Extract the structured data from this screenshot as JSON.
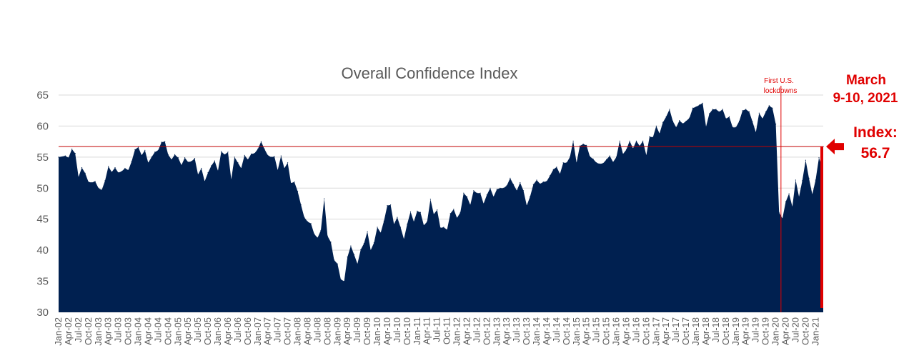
{
  "chart_data": {
    "type": "area",
    "title": "Overall Confidence Index",
    "xlabel": "",
    "ylabel": "",
    "ylim": [
      30,
      65
    ],
    "yticks": [
      30,
      35,
      40,
      45,
      50,
      55,
      60,
      65
    ],
    "grid": "horizontal",
    "x_tick_labels": [
      "Jan-02",
      "Apr-02",
      "Jul-02",
      "Oct-02",
      "Jan-03",
      "Apr-03",
      "Jul-03",
      "Oct-03",
      "Jan-04",
      "Apr-04",
      "Jul-04",
      "Oct-04",
      "Jan-05",
      "Apr-05",
      "Jul-05",
      "Oct-05",
      "Jan-06",
      "Apr-06",
      "Jul-06",
      "Oct-06",
      "Jan-07",
      "Apr-07",
      "Jul-07",
      "Oct-07",
      "Jan-08",
      "Apr-08",
      "Jul-08",
      "Oct-08",
      "Jan-09",
      "Apr-09",
      "Jul-09",
      "Oct-09",
      "Jan-10",
      "Apr-10",
      "Jul-10",
      "Oct-10",
      "Jan-11",
      "Apr-11",
      "Jul-11",
      "Oct-11",
      "Jan-12",
      "Apr-12",
      "Jul-12",
      "Oct-12",
      "Jan-13",
      "Apr-13",
      "Jul-13",
      "Oct-13",
      "Jan-14",
      "Apr-14",
      "Jul-14",
      "Oct-14",
      "Jan-15",
      "Apr-15",
      "Jul-15",
      "Oct-15",
      "Jan-16",
      "Apr-16",
      "Jul-16",
      "Oct-16",
      "Jan-17",
      "Apr-17",
      "Jul-17",
      "Oct-17",
      "Jan-18",
      "Apr-18",
      "Jul-18",
      "Oct-18",
      "Jan-19",
      "Apr-19",
      "Jul-19",
      "Oct-19",
      "Jan-20",
      "Apr-20",
      "Jul-20",
      "Oct-20",
      "Jan-21"
    ],
    "series": [
      {
        "name": "",
        "color": "#002050",
        "points": [
          [
            "Jan-02",
            55.0
          ],
          [
            "Mar-02",
            55.2
          ],
          [
            "Apr-02",
            54.9
          ],
          [
            "May-02",
            56.3
          ],
          [
            "Jun-02",
            55.6
          ],
          [
            "Jul-02",
            51.8
          ],
          [
            "Aug-02",
            53.3
          ],
          [
            "Sep-02",
            52.4
          ],
          [
            "Oct-02",
            51.0
          ],
          [
            "Nov-02",
            50.9
          ],
          [
            "Dec-02",
            51.1
          ],
          [
            "Jan-03",
            50.0
          ],
          [
            "Feb-03",
            49.7
          ],
          [
            "Mar-03",
            51.2
          ],
          [
            "Apr-03",
            53.5
          ],
          [
            "May-03",
            52.6
          ],
          [
            "Jun-03",
            53.3
          ],
          [
            "Jul-03",
            52.5
          ],
          [
            "Aug-03",
            52.7
          ],
          [
            "Sep-03",
            53.2
          ],
          [
            "Oct-03",
            52.9
          ],
          [
            "Nov-03",
            54.3
          ],
          [
            "Dec-03",
            56.2
          ],
          [
            "Jan-04",
            56.6
          ],
          [
            "Feb-04",
            55.3
          ],
          [
            "Mar-04",
            56.1
          ],
          [
            "Apr-04",
            54.1
          ],
          [
            "May-04",
            55.0
          ],
          [
            "Jun-04",
            55.8
          ],
          [
            "Jul-04",
            56.1
          ],
          [
            "Aug-04",
            57.4
          ],
          [
            "Sep-04",
            57.5
          ],
          [
            "Oct-04",
            55.4
          ],
          [
            "Nov-04",
            54.6
          ],
          [
            "Dec-04",
            55.4
          ],
          [
            "Jan-05",
            54.9
          ],
          [
            "Feb-05",
            53.7
          ],
          [
            "Mar-05",
            54.9
          ],
          [
            "Apr-05",
            54.2
          ],
          [
            "May-05",
            54.3
          ],
          [
            "Jun-05",
            54.8
          ],
          [
            "Jul-05",
            52.2
          ],
          [
            "Aug-05",
            53.2
          ],
          [
            "Sep-05",
            51.1
          ],
          [
            "Oct-05",
            52.5
          ],
          [
            "Nov-05",
            53.6
          ],
          [
            "Dec-05",
            54.4
          ],
          [
            "Jan-06",
            52.8
          ],
          [
            "Feb-06",
            55.9
          ],
          [
            "Mar-06",
            55.4
          ],
          [
            "Apr-06",
            55.8
          ],
          [
            "May-06",
            51.4
          ],
          [
            "Jun-06",
            55.0
          ],
          [
            "Jul-06",
            54.1
          ],
          [
            "Aug-06",
            53.2
          ],
          [
            "Sep-06",
            55.3
          ],
          [
            "Oct-06",
            54.6
          ],
          [
            "Nov-06",
            55.5
          ],
          [
            "Dec-06",
            55.6
          ],
          [
            "Jan-07",
            56.3
          ],
          [
            "Feb-07",
            57.5
          ],
          [
            "Mar-07",
            56.3
          ],
          [
            "Apr-07",
            55.3
          ],
          [
            "May-07",
            55.0
          ],
          [
            "Jun-07",
            55.1
          ],
          [
            "Jul-07",
            52.9
          ],
          [
            "Aug-07",
            55.2
          ],
          [
            "Sep-07",
            53.2
          ],
          [
            "Oct-07",
            54.1
          ],
          [
            "Nov-07",
            50.8
          ],
          [
            "Dec-07",
            51.0
          ],
          [
            "Jan-08",
            49.5
          ],
          [
            "Feb-08",
            47.3
          ],
          [
            "Mar-08",
            45.3
          ],
          [
            "Apr-08",
            44.6
          ],
          [
            "May-08",
            44.3
          ],
          [
            "Jun-08",
            42.6
          ],
          [
            "Jul-08",
            42.0
          ],
          [
            "Aug-08",
            43.2
          ],
          [
            "Sep-08",
            48.3
          ],
          [
            "Oct-08",
            42.3
          ],
          [
            "Nov-08",
            41.3
          ],
          [
            "Dec-08",
            38.4
          ],
          [
            "Jan-09",
            37.8
          ],
          [
            "Feb-09",
            35.3
          ],
          [
            "Mar-09",
            35.0
          ],
          [
            "Apr-09",
            38.9
          ],
          [
            "May-09",
            40.7
          ],
          [
            "Jun-09",
            39.3
          ],
          [
            "Jul-09",
            37.8
          ],
          [
            "Aug-09",
            40.1
          ],
          [
            "Sep-09",
            41.1
          ],
          [
            "Oct-09",
            43.0
          ],
          [
            "Nov-09",
            40.0
          ],
          [
            "Dec-09",
            41.2
          ],
          [
            "Jan-10",
            43.7
          ],
          [
            "Feb-10",
            42.8
          ],
          [
            "Mar-10",
            44.7
          ],
          [
            "Apr-10",
            47.2
          ],
          [
            "May-10",
            47.3
          ],
          [
            "Jun-10",
            44.2
          ],
          [
            "Jul-10",
            45.3
          ],
          [
            "Aug-10",
            43.7
          ],
          [
            "Sep-10",
            41.8
          ],
          [
            "Oct-10",
            44.2
          ],
          [
            "Nov-10",
            46.2
          ],
          [
            "Dec-10",
            44.6
          ],
          [
            "Jan-11",
            46.3
          ],
          [
            "Feb-11",
            46.1
          ],
          [
            "Mar-11",
            44.0
          ],
          [
            "Apr-11",
            44.6
          ],
          [
            "May-11",
            48.2
          ],
          [
            "Jun-11",
            45.8
          ],
          [
            "Jul-11",
            46.5
          ],
          [
            "Aug-11",
            43.6
          ],
          [
            "Sep-11",
            43.7
          ],
          [
            "Oct-11",
            43.3
          ],
          [
            "Nov-11",
            45.9
          ],
          [
            "Dec-11",
            46.6
          ],
          [
            "Jan-12",
            45.2
          ],
          [
            "Feb-12",
            46.1
          ],
          [
            "Mar-12",
            49.2
          ],
          [
            "Apr-12",
            48.6
          ],
          [
            "May-12",
            47.3
          ],
          [
            "Jun-12",
            49.6
          ],
          [
            "Jul-12",
            49.2
          ],
          [
            "Aug-12",
            49.2
          ],
          [
            "Sep-12",
            47.5
          ],
          [
            "Oct-12",
            48.9
          ],
          [
            "Nov-12",
            50.0
          ],
          [
            "Dec-12",
            48.6
          ],
          [
            "Jan-13",
            49.8
          ],
          [
            "Feb-13",
            50.0
          ],
          [
            "Mar-13",
            50.0
          ],
          [
            "Apr-13",
            50.4
          ],
          [
            "May-13",
            51.6
          ],
          [
            "Jun-13",
            50.6
          ],
          [
            "Jul-13",
            49.6
          ],
          [
            "Aug-13",
            50.9
          ],
          [
            "Sep-13",
            49.6
          ],
          [
            "Oct-13",
            47.2
          ],
          [
            "Nov-13",
            48.6
          ],
          [
            "Dec-13",
            50.6
          ],
          [
            "Jan-14",
            51.3
          ],
          [
            "Feb-14",
            50.7
          ],
          [
            "Mar-14",
            51.0
          ],
          [
            "Apr-14",
            51.1
          ],
          [
            "May-14",
            52.0
          ],
          [
            "Jun-14",
            53.0
          ],
          [
            "Jul-14",
            53.4
          ],
          [
            "Aug-14",
            52.3
          ],
          [
            "Sep-14",
            54.1
          ],
          [
            "Oct-14",
            54.1
          ],
          [
            "Nov-14",
            55.0
          ],
          [
            "Dec-14",
            57.6
          ],
          [
            "Jan-15",
            54.1
          ],
          [
            "Feb-15",
            56.8
          ],
          [
            "Mar-15",
            57.1
          ],
          [
            "Apr-15",
            56.9
          ],
          [
            "May-15",
            55.1
          ],
          [
            "Jun-15",
            54.7
          ],
          [
            "Jul-15",
            54.1
          ],
          [
            "Aug-15",
            53.9
          ],
          [
            "Sep-15",
            54.0
          ],
          [
            "Oct-15",
            54.6
          ],
          [
            "Nov-15",
            55.2
          ],
          [
            "Dec-15",
            54.2
          ],
          [
            "Jan-16",
            55.0
          ],
          [
            "Feb-16",
            57.6
          ],
          [
            "Mar-16",
            55.5
          ],
          [
            "Apr-16",
            56.2
          ],
          [
            "May-16",
            57.6
          ],
          [
            "Jun-16",
            56.4
          ],
          [
            "Jul-16",
            57.6
          ],
          [
            "Aug-16",
            56.8
          ],
          [
            "Sep-16",
            57.6
          ],
          [
            "Oct-16",
            55.3
          ],
          [
            "Nov-16",
            58.3
          ],
          [
            "Dec-16",
            58.2
          ],
          [
            "Jan-17",
            60.0
          ],
          [
            "Feb-17",
            58.8
          ],
          [
            "Mar-17",
            60.6
          ],
          [
            "Apr-17",
            61.5
          ],
          [
            "May-17",
            62.7
          ],
          [
            "Jun-17",
            60.8
          ],
          [
            "Jul-17",
            59.8
          ],
          [
            "Aug-17",
            60.9
          ],
          [
            "Sep-17",
            60.4
          ],
          [
            "Oct-17",
            60.8
          ],
          [
            "Nov-17",
            61.3
          ],
          [
            "Dec-17",
            62.9
          ],
          [
            "Jan-18",
            63.1
          ],
          [
            "Feb-18",
            63.4
          ],
          [
            "Mar-18",
            63.7
          ],
          [
            "Apr-18",
            59.9
          ],
          [
            "May-18",
            62.0
          ],
          [
            "Jun-18",
            62.7
          ],
          [
            "Jul-18",
            62.7
          ],
          [
            "Aug-18",
            62.3
          ],
          [
            "Sep-18",
            62.7
          ],
          [
            "Oct-18",
            61.2
          ],
          [
            "Nov-18",
            61.5
          ],
          [
            "Dec-18",
            59.8
          ],
          [
            "Jan-19",
            59.8
          ],
          [
            "Feb-19",
            60.8
          ],
          [
            "Mar-19",
            62.5
          ],
          [
            "Apr-19",
            62.7
          ],
          [
            "May-19",
            62.3
          ],
          [
            "Jun-19",
            60.7
          ],
          [
            "Jul-19",
            59.0
          ],
          [
            "Aug-19",
            62.1
          ],
          [
            "Sep-19",
            61.2
          ],
          [
            "Oct-19",
            62.3
          ],
          [
            "Nov-19",
            63.3
          ],
          [
            "Dec-19",
            62.9
          ],
          [
            "Jan-20",
            60.3
          ],
          [
            "Feb-20",
            46.1
          ],
          [
            "Mar-20",
            45.1
          ],
          [
            "Apr-20",
            47.8
          ],
          [
            "May-20",
            49.1
          ],
          [
            "Jun-20",
            47.0
          ],
          [
            "Jul-20",
            51.3
          ],
          [
            "Aug-20",
            48.6
          ],
          [
            "Sep-20",
            51.2
          ],
          [
            "Oct-20",
            54.5
          ],
          [
            "Nov-20",
            51.6
          ],
          [
            "Dec-20",
            49.0
          ],
          [
            "Jan-21",
            51.3
          ],
          [
            "Feb-21",
            54.9
          ],
          [
            "Mar-21",
            53.4
          ],
          [
            "Mar-21b",
            56.7
          ]
        ]
      }
    ],
    "reference_line": {
      "value": 56.7,
      "color": "#c00000"
    },
    "annotations": {
      "lockdown_line1": "First U.S.",
      "lockdown_line2": "lockdowns",
      "lockdown_x": "Mar-20",
      "date_line1": "March",
      "date_line2": "9-10, 2021",
      "index_line1": "Index:",
      "index_line2": "56.7",
      "accent_color": "#e00000"
    }
  }
}
